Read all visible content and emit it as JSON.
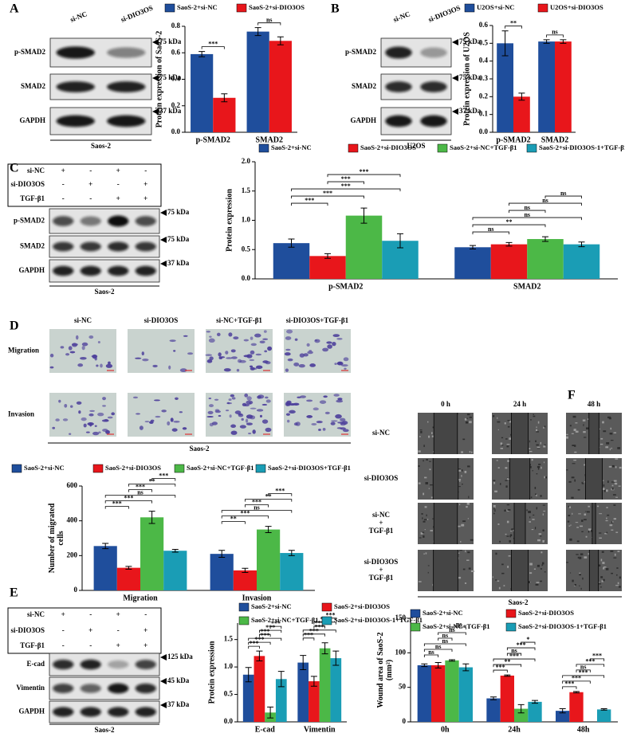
{
  "figure": {
    "panel_labels": [
      "A",
      "B",
      "C",
      "D",
      "E",
      "F"
    ],
    "blot_A": {
      "lanes": [
        "si-NC",
        "si-DIO3OS"
      ],
      "rows": [
        "p-SMAD2",
        "SMAD2",
        "GAPDH"
      ],
      "sizes": [
        "75 kDa",
        "75 kDa",
        "37 kDa"
      ],
      "cell": "Saos-2"
    },
    "blot_B": {
      "lanes": [
        "si-NC",
        "si-DIO3OS"
      ],
      "rows": [
        "p-SMAD2",
        "SMAD2",
        "GAPDH"
      ],
      "sizes": [
        "75 kDa",
        "75 kDa",
        "37 kDa"
      ],
      "cell": "U2OS"
    },
    "blot_C": {
      "conditions": [
        "si-NC",
        "si-DIO3OS",
        "TGF-β1"
      ],
      "signs": [
        [
          "+",
          "-",
          "+",
          "-"
        ],
        [
          "-",
          "+",
          "-",
          "+"
        ],
        [
          "-",
          "-",
          "+",
          "+"
        ]
      ],
      "rows": [
        "p-SMAD2",
        "SMAD2",
        "GAPDH"
      ],
      "sizes": [
        "75 kDa",
        "75 kDa",
        "37 kDa"
      ],
      "cell": "Saos-2"
    },
    "images_D": {
      "columns": [
        "si-NC",
        "si-DIO3OS",
        "si-NC+TGF-β1",
        "si-DIO3OS+TGF-β1"
      ],
      "rows": [
        "Migration",
        "Invasion"
      ],
      "cell": "Saos-2"
    },
    "blot_E": {
      "conditions": [
        "si-NC",
        "si-DIO3OS",
        "TGF-β1"
      ],
      "signs": [
        [
          "+",
          "-",
          "+",
          "-"
        ],
        [
          "-",
          "+",
          "-",
          "+"
        ],
        [
          "-",
          "-",
          "+",
          "+"
        ]
      ],
      "rows": [
        "E-cad",
        "Vimentin",
        "GAPDH"
      ],
      "sizes": [
        "125 kDa",
        "45 kDa",
        "37 kDa"
      ],
      "cell": "Saos-2"
    },
    "images_F": {
      "columns": [
        "0 h",
        "24 h",
        "48 h"
      ],
      "rows": [
        [
          "si-NC"
        ],
        [
          "si-DIO3OS"
        ],
        [
          "si-NC",
          "+",
          "TGF-β1"
        ],
        [
          "si-DIO3OS",
          "+",
          "TGF-β1"
        ]
      ],
      "cell": "Saos-2"
    }
  },
  "chart_data": [
    {
      "type": "bar",
      "ylabel": [
        "Protein expression of SaoS-2"
      ],
      "categories": [
        "p-SMAD2",
        "SMAD2"
      ],
      "series": [
        {
          "name": "SaoS-2+si-NC",
          "color": "#1f4e9c",
          "values": [
            0.59,
            0.76
          ],
          "errors": [
            0.02,
            0.03
          ]
        },
        {
          "name": "SaoS-2+si-DIO3OS",
          "color": "#e8161b",
          "values": [
            0.26,
            0.69
          ],
          "errors": [
            0.03,
            0.03
          ]
        }
      ],
      "ylim": [
        0,
        0.8
      ],
      "yticks": [
        {
          "value": 0,
          "label": "0.0"
        },
        0.2,
        0.4,
        0.6,
        0.8
      ],
      "annotations": [
        [
          "***"
        ],
        [
          "ns"
        ]
      ]
    },
    {
      "type": "bar",
      "ylabel": [
        "Protein expression of U2OS"
      ],
      "categories": [
        "p-SMAD2",
        "SMAD2"
      ],
      "series": [
        {
          "name": "U2OS+si-NC",
          "color": "#1f4e9c",
          "values": [
            0.5,
            0.51
          ],
          "errors": [
            0.07,
            0.01
          ]
        },
        {
          "name": "U2OS+si-DIO3OS",
          "color": "#e8161b",
          "values": [
            0.2,
            0.51
          ],
          "errors": [
            0.02,
            0.01
          ]
        }
      ],
      "ylim": [
        0,
        0.6
      ],
      "yticks": [
        {
          "value": 0,
          "label": "0.0"
        },
        0.1,
        0.2,
        0.3,
        0.4,
        0.5,
        0.6
      ],
      "annotations": [
        [
          "**"
        ],
        [
          "ns"
        ]
      ]
    },
    {
      "type": "bar",
      "ylabel": [
        "Protein expression"
      ],
      "categories": [
        "p-SMAD2",
        "SMAD2"
      ],
      "series": [
        {
          "name": "SaoS-2+si-NC",
          "color": "#1f4e9c",
          "values": [
            0.61,
            0.54
          ],
          "errors": [
            0.07,
            0.03
          ]
        },
        {
          "name": "SaoS-2+si-DIO3OS",
          "color": "#e8161b",
          "values": [
            0.39,
            0.59
          ],
          "errors": [
            0.04,
            0.03
          ]
        },
        {
          "name": "SaoS-2+si-NC+TGF-β1",
          "color": "#4cb847",
          "values": [
            1.08,
            0.68
          ],
          "errors": [
            0.13,
            0.04
          ]
        },
        {
          "name": "SaoS-2+si-DIO3OS-1+TGF-β1",
          "color": "#1a9db5",
          "values": [
            0.65,
            0.59
          ],
          "errors": [
            0.12,
            0.04
          ]
        }
      ],
      "ylim": [
        0,
        2
      ],
      "yticks": [
        {
          "value": 0,
          "label": "0.0"
        },
        0.5,
        {
          "value": 1,
          "label": "1.0"
        },
        1.5,
        {
          "value": 2,
          "label": "2.0"
        }
      ],
      "annotations": [
        [
          "***",
          "***",
          "***",
          "***",
          "***"
        ],
        [
          "ns",
          "**",
          "ns",
          "ns",
          "ns",
          "ns"
        ]
      ]
    },
    {
      "type": "bar",
      "ylabel": [
        "Number of migrated",
        "cells"
      ],
      "categories": [
        "Migration",
        "Invasion"
      ],
      "series": [
        {
          "name": "SaoS-2+si-NC",
          "color": "#1f4e9c",
          "values": [
            255,
            210
          ],
          "errors": [
            15,
            20
          ]
        },
        {
          "name": "SaoS-2+si-DIO3OS",
          "color": "#e8161b",
          "values": [
            130,
            115
          ],
          "errors": [
            8,
            12
          ]
        },
        {
          "name": "SaoS-2+si-NC+TGF-β1",
          "color": "#4cb847",
          "values": [
            420,
            350
          ],
          "errors": [
            35,
            18
          ]
        },
        {
          "name": "SaoS-2+si-DIO3OS+TGF-β1",
          "color": "#1a9db5",
          "values": [
            228,
            215
          ],
          "errors": [
            8,
            15
          ]
        }
      ],
      "ylim": [
        0,
        600
      ],
      "yticks": [
        0,
        200,
        400,
        600
      ],
      "annotations": [
        [
          "***",
          "***",
          "ns",
          "***",
          "**",
          "***"
        ],
        [
          "**",
          "***",
          "ns",
          "***",
          "**",
          "***"
        ]
      ]
    },
    {
      "type": "bar",
      "ylabel": [
        "Protein expression"
      ],
      "categories": [
        "E-cad",
        "Vimentin"
      ],
      "series": [
        {
          "name": "SaoS-2+si-NC",
          "color": "#1f4e9c",
          "values": [
            0.86,
            1.08
          ],
          "errors": [
            0.13,
            0.13
          ]
        },
        {
          "name": "SaoS-2+si-DIO3OS",
          "color": "#e8161b",
          "values": [
            1.2,
            0.74
          ],
          "errors": [
            0.09,
            0.09
          ]
        },
        {
          "name": "SaoS-2+si-NC+TGF-β1",
          "color": "#4cb847",
          "values": [
            0.17,
            1.34
          ],
          "errors": [
            0.1,
            0.1
          ]
        },
        {
          "name": "SaoS-2+si-DIO3OS-1+TGF-β1",
          "color": "#1a9db5",
          "values": [
            0.78,
            1.16
          ],
          "errors": [
            0.14,
            0.13
          ]
        }
      ],
      "ylim": [
        0,
        1.8
      ],
      "yticks": [
        {
          "value": 0,
          "label": "0.0"
        },
        0.5,
        {
          "value": 1,
          "label": "1.0"
        },
        1.5
      ],
      "annotations": [
        [
          "***",
          "***",
          "***",
          "***",
          "***",
          "***"
        ],
        [
          "***",
          "***",
          "***",
          "***",
          "***",
          "***"
        ]
      ]
    },
    {
      "type": "bar",
      "ylabel": [
        "Wound area of SaoS-2",
        "(mm²)"
      ],
      "categories": [
        "0h",
        "24h",
        "48h"
      ],
      "series": [
        {
          "name": "SaoS-2+si-NC",
          "color": "#1f4e9c",
          "values": [
            82,
            34,
            16
          ],
          "errors": [
            2,
            2,
            3
          ]
        },
        {
          "name": "SaoS-2+si-DIO3OS",
          "color": "#e8161b",
          "values": [
            82,
            67,
            43
          ],
          "errors": [
            4,
            1,
            1
          ]
        },
        {
          "name": "SaoS-2+si-NC+TGF-β1",
          "color": "#4cb847",
          "values": [
            89,
            19,
            0
          ],
          "errors": [
            1,
            6,
            0
          ]
        },
        {
          "name": "SaoS-2+si-DIO3OS-1+TGF-β1",
          "color": "#1a9db5",
          "values": [
            79,
            29,
            18
          ],
          "errors": [
            5,
            2,
            1
          ]
        }
      ],
      "ylim": [
        0,
        150
      ],
      "yticks": [
        0,
        50,
        100,
        150
      ],
      "annotations": [
        [
          "ns",
          "ns",
          "ns",
          "ns",
          "ns",
          "ns"
        ],
        [
          "***",
          "**",
          "***",
          "ns",
          "***",
          "*"
        ],
        [
          "***",
          "***",
          "***",
          "ns",
          "***",
          "***"
        ]
      ]
    }
  ]
}
